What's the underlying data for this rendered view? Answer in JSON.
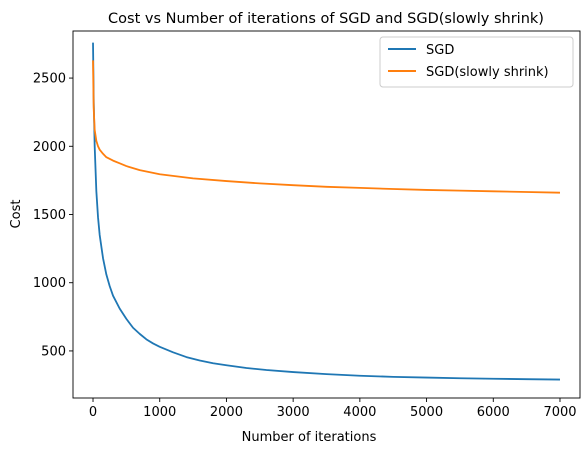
{
  "chart_data": {
    "type": "line",
    "title": "Cost vs Number of iterations of SGD and SGD(slowly shrink)",
    "xlabel": "Number of iterations",
    "ylabel": "Cost",
    "xlim": [
      -300,
      7300
    ],
    "ylim": [
      155,
      2845
    ],
    "xticks": [
      0,
      1000,
      2000,
      3000,
      4000,
      5000,
      6000,
      7000
    ],
    "xtick_labels": [
      "0",
      "1000",
      "2000",
      "3000",
      "4000",
      "5000",
      "6000",
      "7000"
    ],
    "yticks": [
      500,
      1000,
      1500,
      2000,
      2500
    ],
    "ytick_labels": [
      "500",
      "1000",
      "1500",
      "2000",
      "2500"
    ],
    "grid": false,
    "legend_position": "top-right",
    "series": [
      {
        "name": "SGD",
        "color": "#1f77b4",
        "x": [
          0,
          10,
          25,
          50,
          75,
          100,
          150,
          200,
          250,
          300,
          400,
          500,
          600,
          700,
          800,
          900,
          1000,
          1200,
          1400,
          1600,
          1800,
          2000,
          2300,
          2600,
          3000,
          3500,
          4000,
          4500,
          5000,
          5500,
          6000,
          6500,
          7000
        ],
        "values": [
          2760,
          2350,
          2000,
          1670,
          1480,
          1350,
          1180,
          1060,
          975,
          905,
          810,
          735,
          670,
          625,
          585,
          555,
          530,
          490,
          455,
          430,
          410,
          395,
          375,
          360,
          345,
          330,
          318,
          310,
          305,
          300,
          296,
          293,
          290
        ]
      },
      {
        "name": "SGD(slowly shrink)",
        "color": "#ff7f0e",
        "x": [
          0,
          10,
          25,
          50,
          75,
          100,
          150,
          200,
          300,
          400,
          500,
          700,
          1000,
          1500,
          2000,
          2500,
          3000,
          3500,
          4000,
          4500,
          5000,
          5500,
          6000,
          6500,
          7000
        ],
        "values": [
          2630,
          2280,
          2120,
          2040,
          2000,
          1975,
          1945,
          1920,
          1895,
          1875,
          1855,
          1825,
          1795,
          1765,
          1745,
          1728,
          1715,
          1703,
          1695,
          1687,
          1680,
          1675,
          1670,
          1665,
          1660
        ]
      }
    ]
  }
}
